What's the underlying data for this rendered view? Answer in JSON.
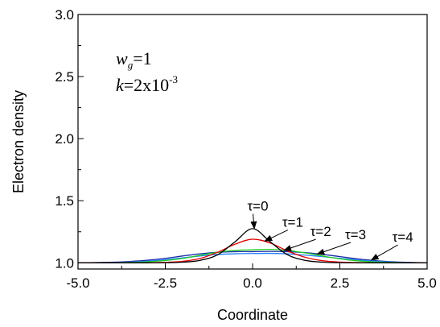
{
  "chart_data": {
    "type": "line",
    "title": "",
    "xlabel": "Coordinate",
    "ylabel": "Electron density",
    "xlim": [
      -5.0,
      5.0
    ],
    "ylim": [
      0.95,
      3.0
    ],
    "xticks": [
      -5.0,
      -2.5,
      0.0,
      2.5,
      5.0
    ],
    "xtick_labels": [
      "-5.0",
      "-2.5",
      "0.0",
      "2.5",
      "5.0"
    ],
    "yticks": [
      1.0,
      1.5,
      2.0,
      2.5,
      3.0
    ],
    "ytick_labels": [
      "1.0",
      "1.5",
      "2.0",
      "2.5",
      "3.0"
    ],
    "grid": false,
    "parameters": {
      "wg_symbol": "w",
      "wg_subscript": "g",
      "wg_value": "=1",
      "k_symbol": "k",
      "k_value": "=2x10",
      "k_exponent": "-3"
    },
    "x": [
      -5.0,
      -4.5,
      -4.0,
      -3.5,
      -3.0,
      -2.5,
      -2.0,
      -1.5,
      -1.0,
      -0.5,
      0.0,
      0.5,
      1.0,
      1.5,
      2.0,
      2.5,
      3.0,
      3.5,
      4.0,
      4.5,
      5.0
    ],
    "series": [
      {
        "name": "τ=0",
        "color": "#000000",
        "values": [
          1.0,
          1.0,
          1.0,
          1.0,
          1.0,
          1.001,
          1.005,
          1.02,
          1.065,
          1.17,
          1.275,
          1.17,
          1.065,
          1.02,
          1.005,
          1.001,
          1.0,
          1.0,
          1.0,
          1.0,
          1.0
        ]
      },
      {
        "name": "τ=1",
        "color": "#e00000",
        "values": [
          1.0,
          1.0,
          1.0,
          1.0,
          1.001,
          1.004,
          1.012,
          1.035,
          1.085,
          1.15,
          1.19,
          1.16,
          1.095,
          1.045,
          1.017,
          1.006,
          1.002,
          1.0,
          1.0,
          1.0,
          1.0
        ]
      },
      {
        "name": "τ=2",
        "color": "#20d020",
        "values": [
          1.0,
          1.0,
          1.001,
          1.003,
          1.008,
          1.018,
          1.035,
          1.06,
          1.085,
          1.1,
          1.105,
          1.108,
          1.1,
          1.08,
          1.055,
          1.032,
          1.016,
          1.007,
          1.003,
          1.001,
          1.0
        ]
      },
      {
        "name": "τ=3",
        "color": "#2080ff",
        "values": [
          1.0,
          1.001,
          1.002,
          1.006,
          1.013,
          1.025,
          1.04,
          1.055,
          1.067,
          1.073,
          1.075,
          1.076,
          1.072,
          1.062,
          1.05,
          1.036,
          1.023,
          1.013,
          1.006,
          1.002,
          1.0
        ]
      },
      {
        "name": "τ=4",
        "color": "#1a2aa8",
        "values": [
          1.0,
          1.002,
          1.005,
          1.011,
          1.021,
          1.036,
          1.055,
          1.072,
          1.085,
          1.09,
          1.09,
          1.092,
          1.09,
          1.082,
          1.068,
          1.05,
          1.032,
          1.018,
          1.008,
          1.003,
          1.0
        ]
      }
    ],
    "annotations": [
      {
        "label": "τ=0",
        "arrow_to": [
          0.05,
          1.275
        ],
        "text_at": [
          0.15,
          1.42
        ]
      },
      {
        "label": "τ=1",
        "arrow_to": [
          0.35,
          1.175
        ],
        "text_at": [
          1.15,
          1.29
        ]
      },
      {
        "label": "τ=2",
        "arrow_to": [
          0.9,
          1.1
        ],
        "text_at": [
          1.95,
          1.215
        ]
      },
      {
        "label": "τ=3",
        "arrow_to": [
          1.85,
          1.07
        ],
        "text_at": [
          2.95,
          1.19
        ]
      },
      {
        "label": "τ=4",
        "arrow_to": [
          3.4,
          1.022
        ],
        "text_at": [
          4.3,
          1.17
        ]
      }
    ]
  }
}
